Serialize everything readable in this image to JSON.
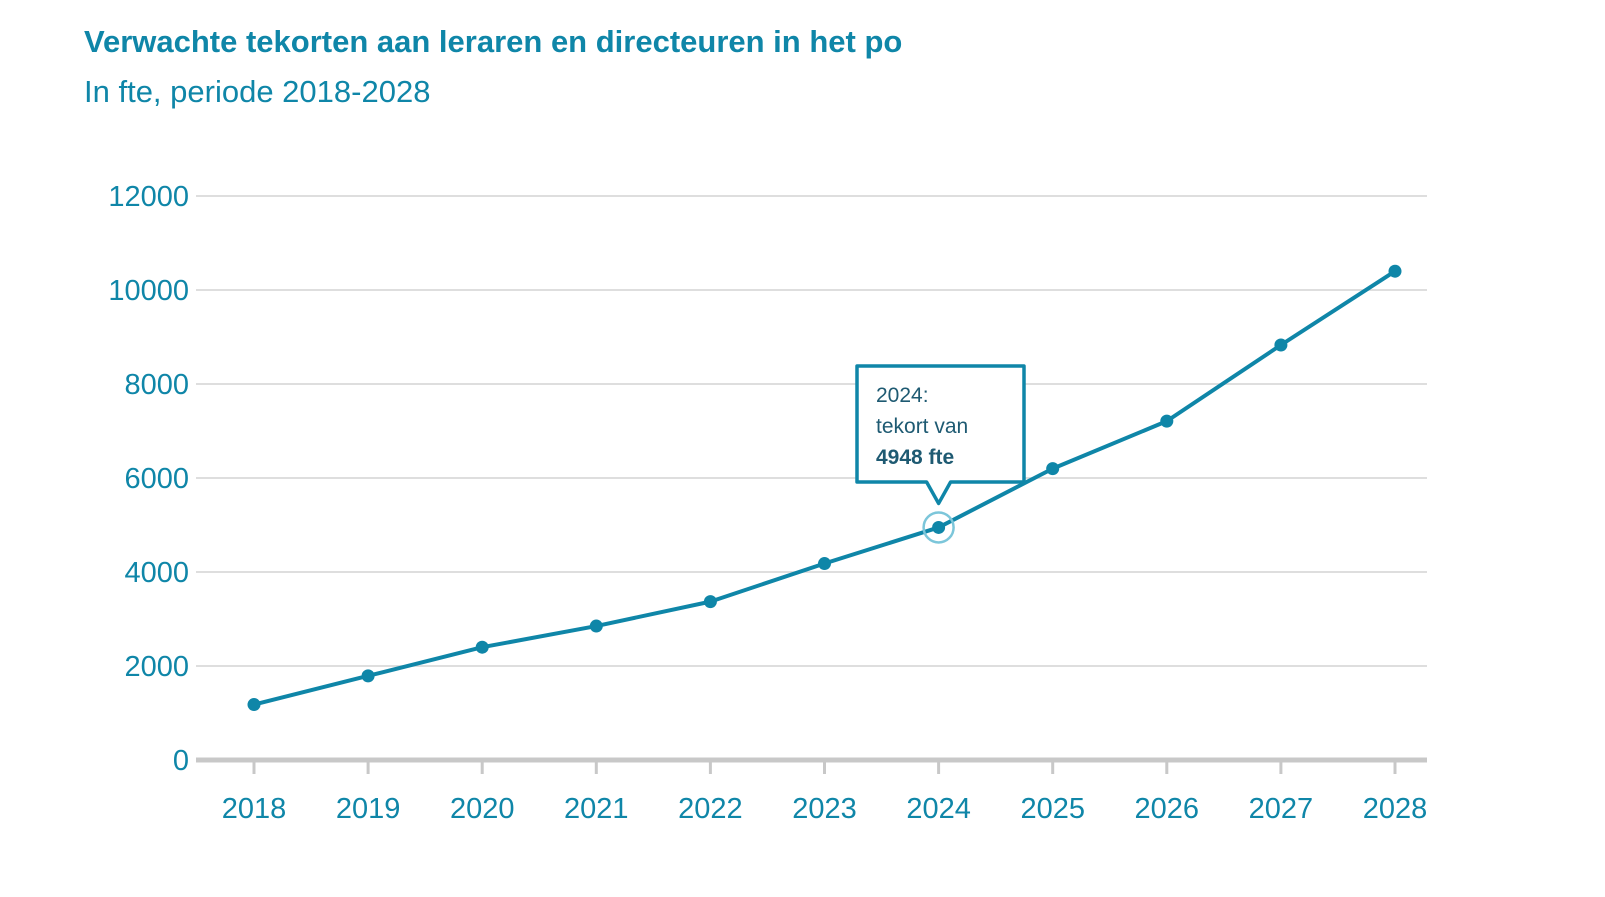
{
  "chart_data": {
    "type": "line",
    "title": "Verwachte tekorten aan leraren en directeuren in het po",
    "subtitle": "In fte, periode 2018-2028",
    "x": [
      "2018",
      "2019",
      "2020",
      "2021",
      "2022",
      "2023",
      "2024",
      "2025",
      "2026",
      "2027",
      "2028"
    ],
    "series": [
      {
        "values": [
          1180,
          1790,
          2400,
          2850,
          3370,
          4180,
          4948,
          6200,
          7210,
          8830,
          10400
        ]
      }
    ],
    "ylim": [
      0,
      12000
    ],
    "yticks": [
      "0",
      "2000",
      "4000",
      "6000",
      "8000",
      "10000",
      "12000"
    ],
    "grid": true,
    "annotation": {
      "x": "2024",
      "value": 4948,
      "line1": "2024:",
      "line2": "tekort van",
      "line3": "4948 fte"
    },
    "colors": {
      "line": "#0f86a8",
      "text": "#0f86a8",
      "grid": "#d4d4d4",
      "axis": "#c8c8c8",
      "highlight": "#7cc6da",
      "callout_text": "#1e5a72"
    }
  }
}
